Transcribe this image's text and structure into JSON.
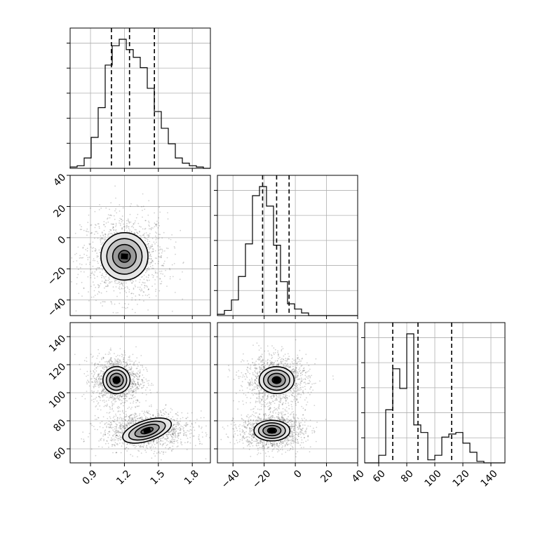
{
  "chart_data": {
    "type": "corner",
    "parameters": [
      {
        "range": [
          0.72,
          1.96
        ],
        "ticks": [
          0.9,
          1.2,
          1.5,
          1.8
        ],
        "tick_labels": [
          "0.9",
          "1.2",
          "1.5",
          "1.8"
        ]
      },
      {
        "range": [
          -50,
          40
        ],
        "ticks": [
          -40,
          -20,
          0,
          20,
          40
        ],
        "tick_labels": [
          "−40",
          "−20",
          "0",
          "20",
          "40"
        ]
      },
      {
        "range": [
          50,
          150
        ],
        "ticks": [
          60,
          80,
          100,
          120,
          140
        ],
        "tick_labels": [
          "60",
          "80",
          "100",
          "120",
          "140"
        ]
      }
    ],
    "histograms": [
      {
        "param": 0,
        "bin_edges": [
          0.72,
          0.782,
          0.844,
          0.906,
          0.968,
          1.03,
          1.092,
          1.154,
          1.216,
          1.278,
          1.34,
          1.402,
          1.464,
          1.526,
          1.588,
          1.65,
          1.712,
          1.774,
          1.836,
          1.898,
          1.96
        ],
        "counts": [
          0.01,
          0.02,
          0.08,
          0.24,
          0.47,
          0.8,
          0.95,
          1.0,
          0.92,
          0.86,
          0.78,
          0.62,
          0.44,
          0.31,
          0.19,
          0.08,
          0.04,
          0.02,
          0.01,
          0.0
        ],
        "quantiles": [
          1.085,
          1.245,
          1.465
        ]
      },
      {
        "param": 1,
        "bin_edges": [
          -50,
          -45.5,
          -41,
          -36.5,
          -32,
          -27.5,
          -23,
          -18.5,
          -14,
          -9.5,
          -5,
          -0.5,
          4,
          8.5,
          13,
          17.5,
          22,
          26.5,
          31,
          35.5,
          40
        ],
        "counts": [
          0.01,
          0.04,
          0.12,
          0.3,
          0.55,
          0.92,
          0.99,
          0.84,
          0.54,
          0.26,
          0.09,
          0.05,
          0.02,
          0.0,
          0.0,
          0.0,
          0.0,
          0.0,
          0.0,
          0.0
        ],
        "quantiles": [
          -21,
          -12,
          -4
        ]
      },
      {
        "param": 2,
        "bin_edges": [
          50,
          55,
          60,
          65,
          70,
          75,
          80,
          85,
          90,
          95,
          100,
          105,
          110,
          115,
          120,
          125,
          130,
          135,
          140,
          145,
          150
        ],
        "counts": [
          0.0,
          0.0,
          0.05,
          0.35,
          0.62,
          0.49,
          0.85,
          0.25,
          0.2,
          0.02,
          0.05,
          0.17,
          0.19,
          0.2,
          0.13,
          0.07,
          0.01,
          0.0,
          0.0,
          0.0
        ],
        "quantiles": [
          70,
          88,
          112
        ]
      }
    ],
    "joint": [
      {
        "x_param": 0,
        "y_param": 1,
        "clusters": [
          {
            "center": [
              1.2,
              -12
            ],
            "spread": [
              0.13,
              9.5
            ]
          }
        ],
        "levels": [
          0.4,
          0.8,
          1.2,
          1.6
        ]
      },
      {
        "x_param": 0,
        "y_param": 2,
        "clusters": [
          {
            "center": [
              1.13,
              109
            ],
            "spread": [
              0.075,
              6.0
            ]
          },
          {
            "center": [
              1.4,
              73
            ],
            "spread": [
              0.14,
              4.6
            ]
          }
        ],
        "levels": [
          0.4,
          0.8,
          1.2,
          1.6
        ]
      },
      {
        "x_param": 1,
        "y_param": 2,
        "clusters": [
          {
            "center": [
              -12,
              109
            ],
            "spread": [
              7.0,
              6.0
            ]
          },
          {
            "center": [
              -15,
              73
            ],
            "spread": [
              7.2,
              4.6
            ]
          }
        ],
        "levels": [
          0.4,
          0.8,
          1.2,
          1.6
        ]
      }
    ],
    "quantile_line_style": "dashed",
    "grid": true
  }
}
